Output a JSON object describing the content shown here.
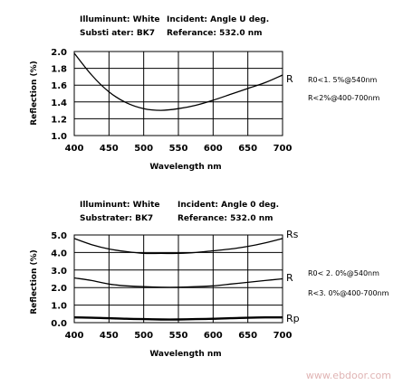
{
  "chart_data": [
    {
      "type": "line",
      "header": {
        "illuminant": "Illuminunt: White",
        "incident": "Incident: Angle U deg.",
        "substrate": "Substi ater: BK7",
        "reference": "Referance: 532.0 nm"
      },
      "xlabel": "Wavelength nm",
      "ylabel": "Reflection (%)",
      "xlim": [
        400,
        700
      ],
      "ylim": [
        1.0,
        2.0
      ],
      "x_ticks": [
        "400",
        "450",
        "500",
        "550",
        "600",
        "650",
        "700"
      ],
      "y_ticks": [
        "2.0",
        "1.8",
        "1.6",
        "1.4",
        "1.2",
        "1.0"
      ],
      "grid": true,
      "series": [
        {
          "name": "R",
          "x": [
            400,
            425,
            450,
            475,
            500,
            525,
            550,
            575,
            600,
            625,
            650,
            675,
            700
          ],
          "y": [
            1.98,
            1.72,
            1.52,
            1.39,
            1.32,
            1.3,
            1.32,
            1.36,
            1.42,
            1.49,
            1.56,
            1.63,
            1.72
          ]
        }
      ],
      "spec_lines": [
        "R0<1. 5%@540nm",
        "R<2%@400-700nm"
      ]
    },
    {
      "type": "line",
      "header": {
        "illuminant": "Illuminunt: White",
        "incident": "Incident: Angle 0 deg.",
        "substrate": "Substrater: BK7",
        "reference": "Referance: 532.0 nm"
      },
      "xlabel": "Wavelength nm",
      "ylabel": "Reflection (%)",
      "xlim": [
        400,
        700
      ],
      "ylim": [
        0.0,
        5.0
      ],
      "x_ticks": [
        "400",
        "450",
        "500",
        "550",
        "600",
        "650",
        "700"
      ],
      "y_ticks": [
        "5.0",
        "4.0",
        "3.0",
        "2.0",
        "1.0",
        "0.0"
      ],
      "grid": true,
      "series": [
        {
          "name": "Rs",
          "x": [
            400,
            425,
            450,
            475,
            500,
            525,
            550,
            575,
            600,
            625,
            650,
            675,
            700
          ],
          "y": [
            4.8,
            4.45,
            4.2,
            4.05,
            3.95,
            3.95,
            3.95,
            4.0,
            4.1,
            4.2,
            4.35,
            4.55,
            4.8
          ]
        },
        {
          "name": "R",
          "x": [
            400,
            425,
            450,
            475,
            500,
            525,
            550,
            575,
            600,
            625,
            650,
            675,
            700
          ],
          "y": [
            2.55,
            2.4,
            2.2,
            2.1,
            2.05,
            2.02,
            2.02,
            2.05,
            2.1,
            2.2,
            2.3,
            2.4,
            2.5
          ]
        },
        {
          "name": "Rp",
          "x": [
            400,
            425,
            450,
            475,
            500,
            525,
            550,
            575,
            600,
            625,
            650,
            675,
            700
          ],
          "y": [
            0.3,
            0.28,
            0.25,
            0.22,
            0.2,
            0.18,
            0.18,
            0.2,
            0.22,
            0.25,
            0.28,
            0.3,
            0.3
          ]
        }
      ],
      "spec_lines": [
        "R0< 2. 0%@540nm",
        "R<3. 0%@400-700nm"
      ]
    }
  ],
  "watermark": "www.ebdoor.com",
  "colors": {
    "line": "#000000",
    "grid": "#000000",
    "watermark": "#e0b4b4"
  }
}
